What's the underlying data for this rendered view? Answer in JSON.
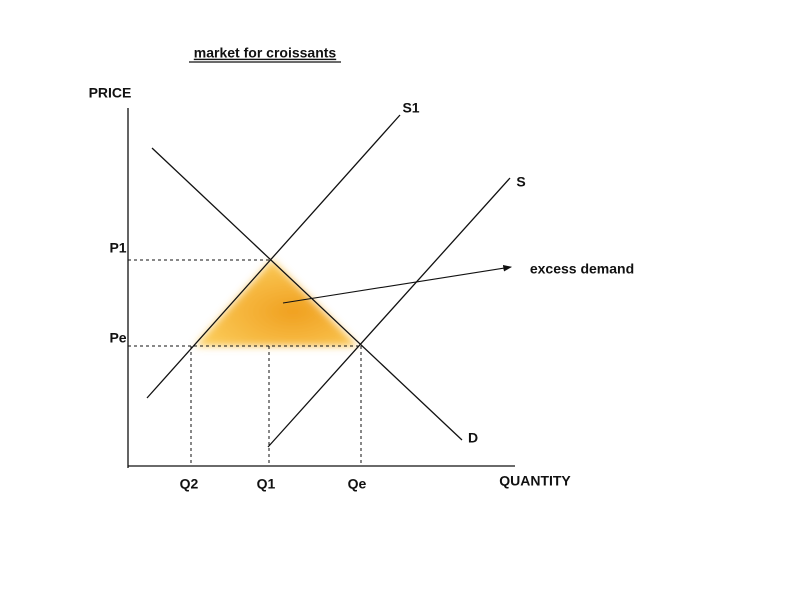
{
  "title": "market for croissants",
  "axes": {
    "y_label": "PRICE",
    "x_label": "QUANTITY"
  },
  "curves": [
    {
      "label": "S1"
    },
    {
      "label": "S"
    },
    {
      "label": "D"
    }
  ],
  "price_levels": [
    "P1",
    "Pe"
  ],
  "quantity_levels": [
    "Q2",
    "Q1",
    "Qe"
  ],
  "annotation": "excess demand"
}
